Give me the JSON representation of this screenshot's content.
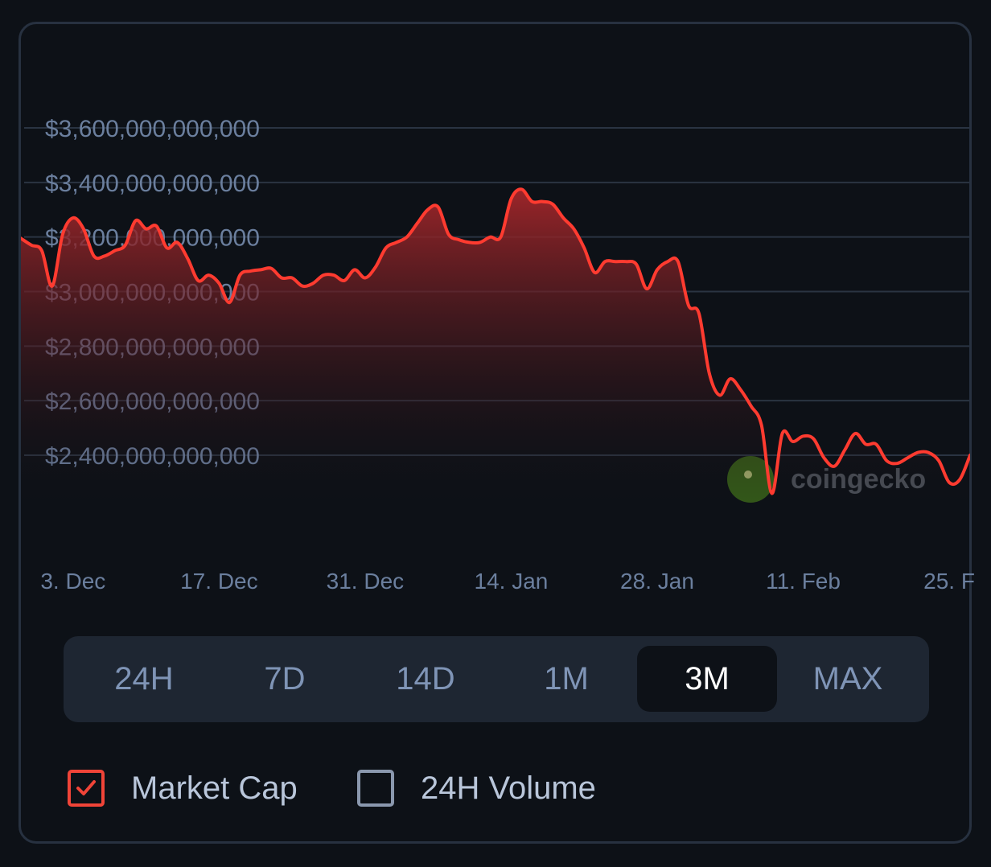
{
  "chart_data": {
    "type": "area",
    "series": [
      {
        "values": [
          [
            "2024-11-28",
            3195
          ],
          [
            "2024-11-29",
            3170
          ],
          [
            "2024-11-30",
            3150
          ],
          [
            "2024-12-01",
            3020
          ],
          [
            "2024-12-02",
            3210
          ],
          [
            "2024-12-03",
            3270
          ],
          [
            "2024-12-04",
            3230
          ],
          [
            "2024-12-05",
            3130
          ],
          [
            "2024-12-06",
            3130
          ],
          [
            "2024-12-07",
            3150
          ],
          [
            "2024-12-08",
            3170
          ],
          [
            "2024-12-09",
            3260
          ],
          [
            "2024-12-10",
            3230
          ],
          [
            "2024-12-11",
            3240
          ],
          [
            "2024-12-12",
            3160
          ],
          [
            "2024-12-13",
            3180
          ],
          [
            "2024-12-14",
            3120
          ],
          [
            "2024-12-15",
            3040
          ],
          [
            "2024-12-16",
            3060
          ],
          [
            "2024-12-17",
            3030
          ],
          [
            "2024-12-18",
            2960
          ],
          [
            "2024-12-19",
            3060
          ],
          [
            "2024-12-20",
            3075
          ],
          [
            "2024-12-21",
            3080
          ],
          [
            "2024-12-22",
            3085
          ],
          [
            "2024-12-23",
            3050
          ],
          [
            "2024-12-24",
            3050
          ],
          [
            "2024-12-25",
            3020
          ],
          [
            "2024-12-26",
            3030
          ],
          [
            "2024-12-27",
            3060
          ],
          [
            "2024-12-28",
            3060
          ],
          [
            "2024-12-29",
            3040
          ],
          [
            "2024-12-30",
            3080
          ],
          [
            "2024-12-31",
            3050
          ],
          [
            "2025-01-01",
            3090
          ],
          [
            "2025-01-02",
            3160
          ],
          [
            "2025-01-03",
            3180
          ],
          [
            "2025-01-04",
            3200
          ],
          [
            "2025-01-05",
            3250
          ],
          [
            "2025-01-06",
            3300
          ],
          [
            "2025-01-07",
            3310
          ],
          [
            "2025-01-08",
            3210
          ],
          [
            "2025-01-09",
            3190
          ],
          [
            "2025-01-10",
            3180
          ],
          [
            "2025-01-11",
            3180
          ],
          [
            "2025-01-12",
            3200
          ],
          [
            "2025-01-13",
            3200
          ],
          [
            "2025-01-14",
            3340
          ],
          [
            "2025-01-15",
            3375
          ],
          [
            "2025-01-16",
            3330
          ],
          [
            "2025-01-17",
            3330
          ],
          [
            "2025-01-18",
            3320
          ],
          [
            "2025-01-19",
            3270
          ],
          [
            "2025-01-20",
            3230
          ],
          [
            "2025-01-21",
            3160
          ],
          [
            "2025-01-22",
            3070
          ],
          [
            "2025-01-23",
            3110
          ],
          [
            "2025-01-24",
            3110
          ],
          [
            "2025-01-25",
            3110
          ],
          [
            "2025-01-26",
            3100
          ],
          [
            "2025-01-27",
            3010
          ],
          [
            "2025-01-28",
            3080
          ],
          [
            "2025-01-29",
            3110
          ],
          [
            "2025-01-30",
            3110
          ],
          [
            "2025-01-31",
            2950
          ],
          [
            "2025-02-01",
            2920
          ],
          [
            "2025-02-02",
            2700
          ],
          [
            "2025-02-03",
            2620
          ],
          [
            "2025-02-04",
            2680
          ],
          [
            "2025-02-05",
            2640
          ],
          [
            "2025-02-06",
            2580
          ],
          [
            "2025-02-07",
            2510
          ],
          [
            "2025-02-08",
            2260
          ],
          [
            "2025-02-09",
            2480
          ],
          [
            "2025-02-10",
            2450
          ],
          [
            "2025-02-11",
            2470
          ],
          [
            "2025-02-12",
            2460
          ],
          [
            "2025-02-13",
            2390
          ],
          [
            "2025-02-14",
            2360
          ],
          [
            "2025-02-15",
            2420
          ],
          [
            "2025-02-16",
            2480
          ],
          [
            "2025-02-17",
            2440
          ],
          [
            "2025-02-18",
            2440
          ],
          [
            "2025-02-19",
            2380
          ],
          [
            "2025-02-20",
            2370
          ],
          [
            "2025-02-21",
            2390
          ],
          [
            "2025-02-22",
            2410
          ],
          [
            "2025-02-23",
            2410
          ],
          [
            "2025-02-24",
            2380
          ],
          [
            "2025-02-25",
            2300
          ],
          [
            "2025-02-26",
            2310
          ],
          [
            "2025-02-27",
            2400
          ]
        ]
      }
    ],
    "x_unit": "date",
    "y_unit": "USD billions",
    "xlim": [
      "2024-11-28",
      "2025-02-27"
    ],
    "ylim": [
      2200,
      3800
    ],
    "y_ticks": [
      {
        "value": 3600,
        "label": "$3,600,000,000,000"
      },
      {
        "value": 3400,
        "label": "$3,400,000,000,000"
      },
      {
        "value": 3200,
        "label": "$3,200,000,000,000"
      },
      {
        "value": 3000,
        "label": "$3,000,000,000,000"
      },
      {
        "value": 2800,
        "label": "$2,800,000,000,000"
      },
      {
        "value": 2600,
        "label": "$2,600,000,000,000"
      },
      {
        "value": 2400,
        "label": "$2,400,000,000,000"
      }
    ],
    "x_ticks": [
      {
        "value": "2024-12-03",
        "label": "3. Dec"
      },
      {
        "value": "2024-12-17",
        "label": "17. Dec"
      },
      {
        "value": "2024-12-31",
        "label": "31. Dec"
      },
      {
        "value": "2025-01-14",
        "label": "14. Jan"
      },
      {
        "value": "2025-01-28",
        "label": "28. Jan"
      },
      {
        "value": "2025-02-11",
        "label": "11. Feb"
      },
      {
        "value": "2025-02-25",
        "label": "25. F"
      }
    ],
    "grid": true,
    "legend": "none",
    "line_color": "#ff3b30",
    "fill_color_top": "#a3262a",
    "fill_color_bottom": "#0d1117",
    "grid_color": "#2a3442",
    "tick_color": "#6b7f9e"
  },
  "watermark": {
    "text": "coingecko"
  },
  "range_selector": {
    "options": [
      {
        "label": "24H",
        "active": false
      },
      {
        "label": "7D",
        "active": false
      },
      {
        "label": "14D",
        "active": false
      },
      {
        "label": "1M",
        "active": false
      },
      {
        "label": "3M",
        "active": true
      },
      {
        "label": "MAX",
        "active": false
      }
    ]
  },
  "toggles": {
    "market_cap": {
      "label": "Market Cap",
      "checked": true
    },
    "volume": {
      "label": "24H Volume",
      "checked": false
    }
  },
  "colors": {
    "accent_red": "#f04438",
    "active_text": "#ffffff",
    "inactive_text": "#7f94b6"
  }
}
